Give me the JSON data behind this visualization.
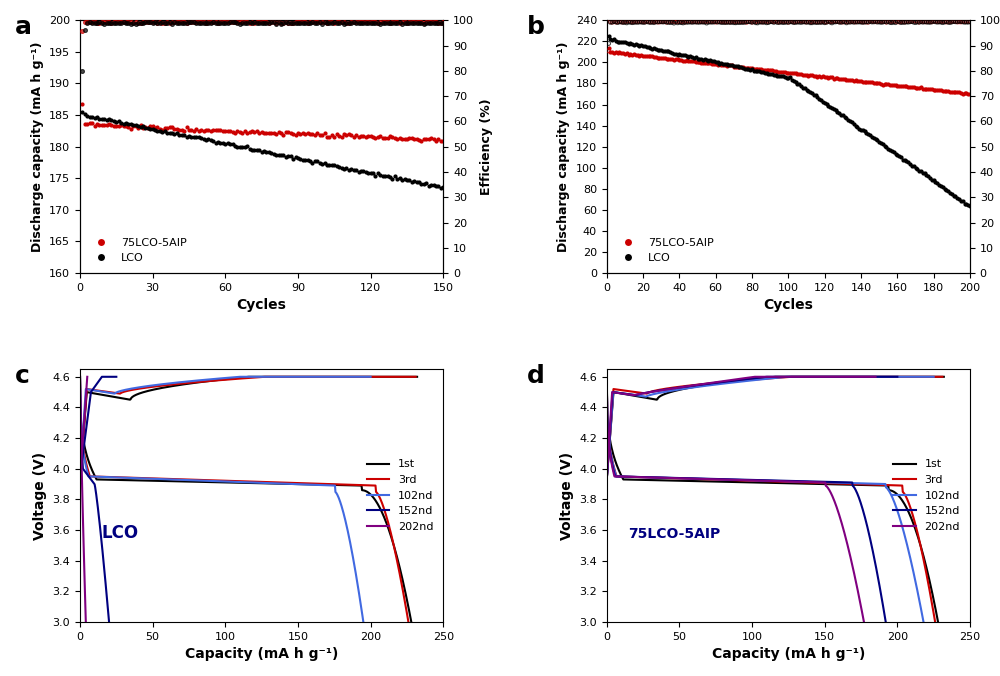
{
  "panel_a": {
    "title": "a",
    "cycles_max": 150,
    "ylim_left": [
      160,
      200
    ],
    "ylim_right": [
      0,
      100
    ],
    "yticks_left": [
      160,
      165,
      170,
      175,
      180,
      185,
      190,
      195,
      200
    ],
    "yticks_right": [
      0,
      10,
      20,
      30,
      40,
      50,
      60,
      70,
      80,
      90,
      100
    ],
    "xticks": [
      0,
      30,
      60,
      90,
      120,
      150
    ],
    "red_discharge_start": 183.5,
    "red_discharge_end": 181.0,
    "black_discharge_start": 185.5,
    "black_discharge_end": 173.5,
    "efficiency_red_start": 99.0,
    "efficiency_black_start_low": 80.0
  },
  "panel_b": {
    "title": "b",
    "cycles_max": 200,
    "ylim_left": [
      0,
      240
    ],
    "ylim_right": [
      0,
      100
    ],
    "yticks_left": [
      0,
      20,
      40,
      60,
      80,
      100,
      120,
      140,
      160,
      180,
      200,
      220,
      240
    ],
    "yticks_right": [
      0,
      10,
      20,
      30,
      40,
      50,
      60,
      70,
      80,
      90,
      100
    ],
    "xticks": [
      0,
      20,
      40,
      60,
      80,
      100,
      120,
      140,
      160,
      180,
      200
    ],
    "red_discharge_start": 213.0,
    "red_discharge_end": 170.0,
    "black_discharge_start": 222.0,
    "black_discharge_end": 63.0,
    "efficiency_red_start": 99.5,
    "efficiency_black_start_low": 91.0
  },
  "panel_c": {
    "title": "c",
    "label": "LCO",
    "xlim": [
      0,
      250
    ],
    "ylim": [
      3.0,
      4.6
    ],
    "xticks": [
      0,
      50,
      100,
      150,
      200,
      250
    ],
    "yticks": [
      3.0,
      3.2,
      3.4,
      3.6,
      3.8,
      4.0,
      4.2,
      4.4,
      4.6
    ]
  },
  "panel_d": {
    "title": "d",
    "label": "75LCO-5AIP",
    "xlim": [
      0,
      250
    ],
    "ylim": [
      3.0,
      4.6
    ],
    "xticks": [
      0,
      50,
      100,
      150,
      200,
      250
    ],
    "yticks": [
      3.0,
      3.2,
      3.4,
      3.6,
      3.8,
      4.0,
      4.2,
      4.4,
      4.6
    ]
  },
  "colors": {
    "red": "#CC0000",
    "black": "#000000",
    "blue": "#4169E1",
    "navy": "#000080",
    "purple": "#800080"
  },
  "legend_ab": [
    "75LCO-5AIP",
    "LCO"
  ],
  "legend_cd": [
    "1st",
    "3rd",
    "102nd",
    "152nd",
    "202nd"
  ],
  "xlabel_ab": "Cycles",
  "ylabel_ab_left": "Discharge capacity (mA h g⁻¹)",
  "ylabel_ab_right": "Efficiency (%)",
  "xlabel_cd": "Capacity (mA h g⁻¹)",
  "ylabel_cd": "Voltage (V)"
}
